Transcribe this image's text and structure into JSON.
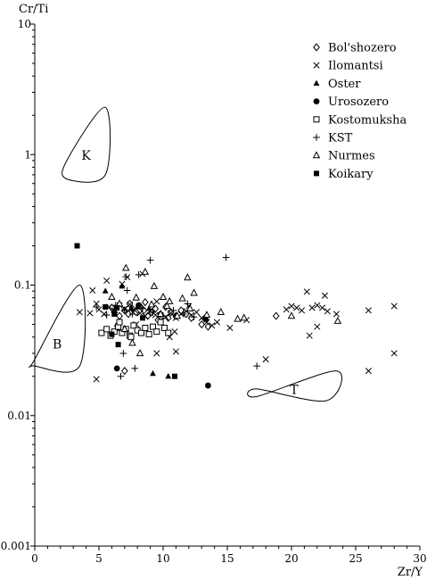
{
  "chart_data": {
    "type": "scatter",
    "x_scale": "linear",
    "y_scale": "log",
    "xlabel": "Zr/Y",
    "ylabel": "Cr/Ti",
    "xlim": [
      0,
      30
    ],
    "ylim": [
      0.001,
      10
    ],
    "x_ticks": [
      0,
      5,
      10,
      15,
      20,
      25,
      30
    ],
    "y_ticks": [
      0.001,
      0.01,
      0.1,
      1,
      10
    ],
    "y_tick_labels": [
      "0.001",
      "0.01",
      "0.1",
      "1",
      "10"
    ],
    "grid": false,
    "legend_position": "top-right",
    "color": "#000000",
    "fields": [
      {
        "label": "K",
        "x": [
          2.5,
          5.5,
          5.5,
          2.5
        ],
        "y": [
          0.9,
          2.3,
          0.7,
          0.65
        ]
      },
      {
        "label": "B",
        "x": [
          0,
          3.5,
          3.5,
          0
        ],
        "y": [
          0.027,
          0.1,
          0.024,
          0.024
        ]
      },
      {
        "label": "T",
        "x": [
          17.3,
          23.5,
          22.7,
          17.3
        ],
        "y": [
          0.014,
          0.022,
          0.013,
          0.016
        ]
      }
    ],
    "series": [
      {
        "name": "Bol'shozero",
        "marker": "diamond",
        "points": [
          [
            6.2,
            0.062
          ],
          [
            6.6,
            0.058
          ],
          [
            7.0,
            0.064
          ],
          [
            7.3,
            0.06
          ],
          [
            7.6,
            0.066
          ],
          [
            7.9,
            0.062
          ],
          [
            8.2,
            0.069
          ],
          [
            8.5,
            0.064
          ],
          [
            8.8,
            0.058
          ],
          [
            9.1,
            0.062
          ],
          [
            9.4,
            0.066
          ],
          [
            9.8,
            0.06
          ],
          [
            10.2,
            0.068
          ],
          [
            10.6,
            0.062
          ],
          [
            11.0,
            0.058
          ],
          [
            11.4,
            0.064
          ],
          [
            11.8,
            0.06
          ],
          [
            12.2,
            0.056
          ],
          [
            7.4,
            0.072
          ],
          [
            8.6,
            0.074
          ],
          [
            9.6,
            0.054
          ],
          [
            10.4,
            0.056
          ],
          [
            13.0,
            0.05
          ],
          [
            13.5,
            0.048
          ],
          [
            18.8,
            0.058
          ],
          [
            7.0,
            0.022
          ],
          [
            6.0,
            0.067
          ]
        ]
      },
      {
        "name": "Ilomantsi",
        "marker": "x",
        "points": [
          [
            4.5,
            0.091
          ],
          [
            4.8,
            0.072
          ],
          [
            5.0,
            0.065
          ],
          [
            5.4,
            0.06
          ],
          [
            5.8,
            0.068
          ],
          [
            6.2,
            0.064
          ],
          [
            6.6,
            0.07
          ],
          [
            7.0,
            0.066
          ],
          [
            7.4,
            0.071
          ],
          [
            7.8,
            0.064
          ],
          [
            8.2,
            0.061
          ],
          [
            8.6,
            0.058
          ],
          [
            9.0,
            0.063
          ],
          [
            9.4,
            0.059
          ],
          [
            9.8,
            0.054
          ],
          [
            10.2,
            0.057
          ],
          [
            10.6,
            0.061
          ],
          [
            11.0,
            0.056
          ],
          [
            11.4,
            0.06
          ],
          [
            11.8,
            0.063
          ],
          [
            12.2,
            0.059
          ],
          [
            12.6,
            0.062
          ],
          [
            13.0,
            0.056
          ],
          [
            13.4,
            0.052
          ],
          [
            13.8,
            0.049
          ],
          [
            14.2,
            0.052
          ],
          [
            15.2,
            0.047
          ],
          [
            16.5,
            0.054
          ],
          [
            18.0,
            0.027
          ],
          [
            19.6,
            0.065
          ],
          [
            20.0,
            0.069
          ],
          [
            20.4,
            0.067
          ],
          [
            20.8,
            0.064
          ],
          [
            21.2,
            0.089
          ],
          [
            21.6,
            0.067
          ],
          [
            22.0,
            0.07
          ],
          [
            22.4,
            0.067
          ],
          [
            22.8,
            0.063
          ],
          [
            21.4,
            0.041
          ],
          [
            22.0,
            0.048
          ],
          [
            23.5,
            0.06
          ],
          [
            22.6,
            0.083
          ],
          [
            26.0,
            0.064
          ],
          [
            28.0,
            0.069
          ],
          [
            28.0,
            0.03
          ],
          [
            26.0,
            0.022
          ],
          [
            4.8,
            0.019
          ],
          [
            8.4,
            0.122
          ],
          [
            9.5,
            0.075
          ],
          [
            9.5,
            0.03
          ],
          [
            10.5,
            0.04
          ],
          [
            11.0,
            0.031
          ],
          [
            5.6,
            0.108
          ],
          [
            6.8,
            0.102
          ],
          [
            4.3,
            0.061
          ],
          [
            3.5,
            0.062
          ],
          [
            7.2,
            0.115
          ],
          [
            7.9,
            0.05
          ],
          [
            10.9,
            0.044
          ],
          [
            12.0,
            0.069
          ]
        ]
      },
      {
        "name": "Oster",
        "marker": "triangle",
        "points": [
          [
            5.5,
            0.09
          ],
          [
            6.8,
            0.098
          ],
          [
            7.5,
            0.066
          ],
          [
            8.0,
            0.068
          ],
          [
            8.9,
            0.066
          ],
          [
            6.4,
            0.05
          ],
          [
            9.2,
            0.021
          ],
          [
            10.4,
            0.02
          ]
        ]
      },
      {
        "name": "Urosozero",
        "marker": "circle",
        "points": [
          [
            6.4,
            0.023
          ],
          [
            6.5,
            0.047
          ],
          [
            8.1,
            0.07
          ],
          [
            11.0,
            0.058
          ],
          [
            13.3,
            0.055
          ],
          [
            13.5,
            0.017
          ]
        ]
      },
      {
        "name": "Kostomuksha",
        "marker": "square",
        "points": [
          [
            5.2,
            0.043
          ],
          [
            5.6,
            0.046
          ],
          [
            5.9,
            0.041
          ],
          [
            6.2,
            0.044
          ],
          [
            6.5,
            0.048
          ],
          [
            6.8,
            0.043
          ],
          [
            7.1,
            0.046
          ],
          [
            7.4,
            0.041
          ],
          [
            7.7,
            0.049
          ],
          [
            8.0,
            0.045
          ],
          [
            8.3,
            0.043
          ],
          [
            8.6,
            0.047
          ],
          [
            8.9,
            0.042
          ],
          [
            9.2,
            0.048
          ],
          [
            9.5,
            0.044
          ],
          [
            9.8,
            0.052
          ],
          [
            10.1,
            0.047
          ],
          [
            10.4,
            0.043
          ],
          [
            6.6,
            0.052
          ],
          [
            7.5,
            0.04
          ]
        ]
      },
      {
        "name": "KST",
        "marker": "plus",
        "points": [
          [
            4.8,
            0.068
          ],
          [
            5.6,
            0.059
          ],
          [
            6.3,
            0.07
          ],
          [
            7.0,
            0.064
          ],
          [
            7.6,
            0.06
          ],
          [
            8.4,
            0.066
          ],
          [
            9.2,
            0.062
          ],
          [
            10.0,
            0.058
          ],
          [
            10.8,
            0.064
          ],
          [
            11.6,
            0.06
          ],
          [
            12.4,
            0.057
          ],
          [
            13.2,
            0.055
          ],
          [
            9.0,
            0.155
          ],
          [
            8.1,
            0.12
          ],
          [
            14.9,
            0.163
          ],
          [
            7.2,
            0.091
          ],
          [
            6.9,
            0.03
          ],
          [
            6.7,
            0.02
          ],
          [
            7.8,
            0.023
          ],
          [
            17.3,
            0.024
          ],
          [
            11.9,
            0.072
          ],
          [
            7.1,
            0.116
          ]
        ]
      },
      {
        "name": "Nurmes",
        "marker": "triangle-open",
        "points": [
          [
            7.1,
            0.135
          ],
          [
            8.6,
            0.126
          ],
          [
            11.9,
            0.114
          ],
          [
            12.4,
            0.087
          ],
          [
            9.3,
            0.098
          ],
          [
            10.0,
            0.081
          ],
          [
            10.5,
            0.075
          ],
          [
            11.5,
            0.079
          ],
          [
            6.0,
            0.081
          ],
          [
            6.6,
            0.072
          ],
          [
            7.9,
            0.08
          ],
          [
            9.1,
            0.071
          ],
          [
            9.8,
            0.06
          ],
          [
            10.3,
            0.069
          ],
          [
            11.1,
            0.058
          ],
          [
            12.1,
            0.066
          ],
          [
            13.4,
            0.059
          ],
          [
            14.5,
            0.062
          ],
          [
            15.8,
            0.055
          ],
          [
            16.3,
            0.056
          ],
          [
            20.0,
            0.058
          ],
          [
            23.6,
            0.053
          ],
          [
            7.6,
            0.036
          ],
          [
            8.2,
            0.03
          ],
          [
            7.0,
            0.046
          ]
        ]
      },
      {
        "name": "Koikary",
        "marker": "square-filled",
        "points": [
          [
            3.3,
            0.2
          ],
          [
            5.5,
            0.068
          ],
          [
            6.2,
            0.06
          ],
          [
            6.0,
            0.042
          ],
          [
            6.5,
            0.035
          ],
          [
            10.9,
            0.02
          ],
          [
            6.4,
            0.067
          ],
          [
            8.4,
            0.056
          ]
        ]
      }
    ]
  }
}
